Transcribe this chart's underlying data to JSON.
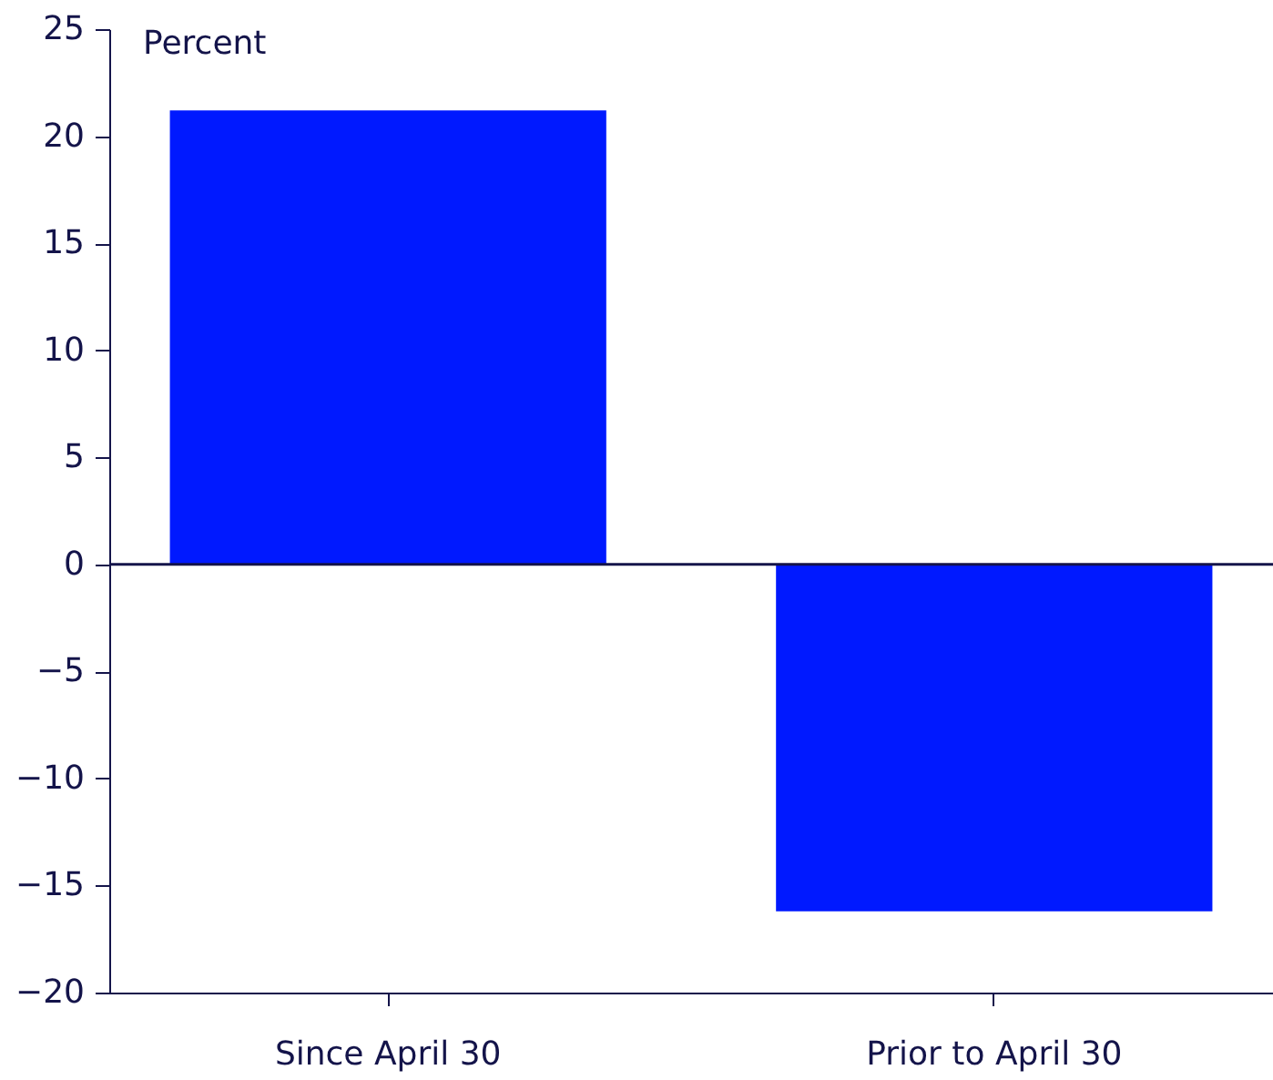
{
  "chart_data": {
    "type": "bar",
    "ylabel": "Percent",
    "categories": [
      "Since April 30",
      "Prior to April 30"
    ],
    "values": [
      21.2,
      -16.2
    ],
    "color": "#0019ff",
    "ylim": [
      -20,
      25
    ],
    "yticks": [
      -20,
      -15,
      -10,
      -5,
      0,
      5,
      10,
      15,
      20,
      25
    ],
    "grid": false,
    "ref_lines": [
      {
        "axis": "y",
        "value": 0
      }
    ]
  }
}
